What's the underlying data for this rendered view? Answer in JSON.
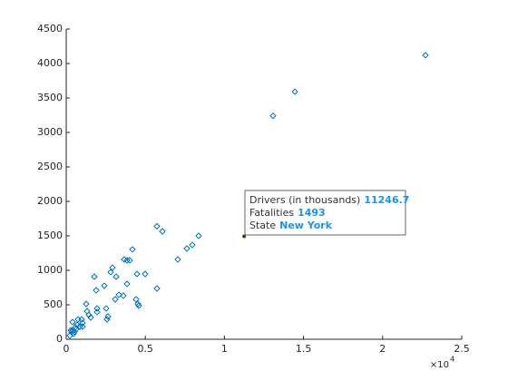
{
  "chart_data": {
    "type": "scatter",
    "xlim": [
      0,
      25000
    ],
    "ylim": [
      0,
      4500
    ],
    "xticks": [
      {
        "value": 0,
        "label": "0"
      },
      {
        "value": 5000,
        "label": "0.5"
      },
      {
        "value": 10000,
        "label": "1"
      },
      {
        "value": 15000,
        "label": "1.5"
      },
      {
        "value": 20000,
        "label": "2"
      },
      {
        "value": 25000,
        "label": "2.5"
      }
    ],
    "yticks": [
      0,
      500,
      1000,
      1500,
      2000,
      2500,
      3000,
      3500,
      4000,
      4500
    ],
    "x_multiplier_base": "×10",
    "x_multiplier_exp": "4",
    "color": "#0072bd",
    "series": [
      {
        "x": [
          22706,
          14450,
          13073,
          5734,
          6078,
          8372,
          7970,
          7626,
          7053,
          4186,
          2924,
          2810,
          1778,
          3670,
          3842,
          4014,
          4472,
          4989,
          3154,
          2408,
          1892,
          3842,
          5734,
          3326,
          3612,
          4415,
          3096,
          4530,
          4587,
          2523,
          1950,
          1950,
          1261,
          1319,
          1434,
          1548,
          2580,
          2637,
          975,
          745,
          401,
          688,
          860,
          1032,
          573,
          401,
          287,
          344,
          516,
          229,
          459,
          631,
          1032
        ],
        "values": [
          4120,
          3590,
          3240,
          1640,
          1566,
          1500,
          1368,
          1316,
          1158,
          1303,
          1039,
          974,
          908,
          1158,
          1145,
          1145,
          947,
          947,
          908,
          776,
          711,
          803,
          737,
          645,
          632,
          579,
          579,
          513,
          487,
          447,
          447,
          395,
          513,
          408,
          355,
          316,
          289,
          329,
          289,
          289,
          250,
          211,
          184,
          184,
          171,
          132,
          132,
          105,
          105,
          53,
          79,
          145,
          237
        ]
      }
    ],
    "data_tip": {
      "x": 11246.7,
      "y": 1493,
      "rows": [
        {
          "label": "Drivers (in thousands)",
          "value": 11246.7
        },
        {
          "label": "Fatalities",
          "value": 1493
        },
        {
          "label": "State",
          "value": "New York"
        }
      ]
    }
  }
}
